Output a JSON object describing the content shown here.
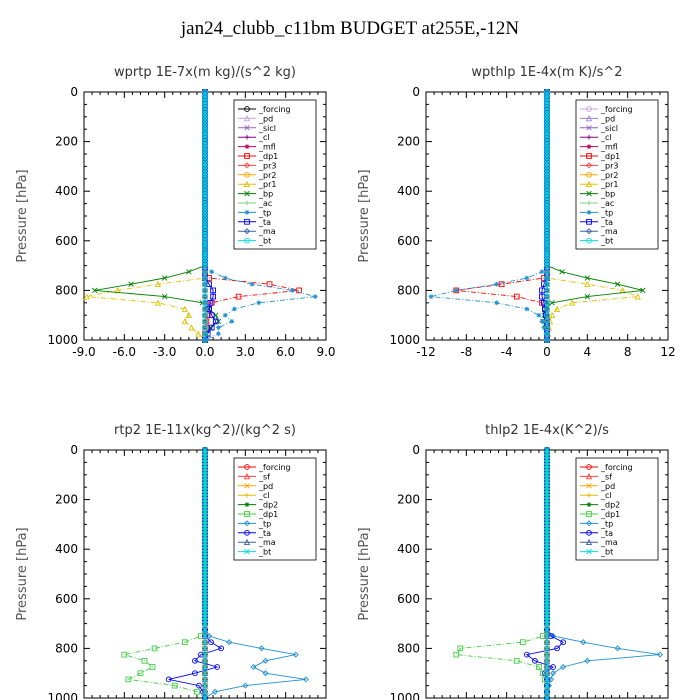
{
  "title": "jan24_clubb_c11bm  BUDGET at255E,-12N",
  "chart_data": [
    {
      "type": "line",
      "title": "wprtp  1E-7x(m kg)/(s^2 kg)",
      "ylabel": "Pressure [hPa]",
      "xlim": [
        -9,
        9
      ],
      "ylim": [
        0,
        1000
      ],
      "xticks": [
        "-9.0",
        "-6.0",
        "-3.0",
        "0.0",
        "3.0",
        "6.0",
        "9.0"
      ],
      "yticks": [
        "0",
        "200",
        "400",
        "600",
        "800",
        "1000"
      ],
      "legend_position": "top-right",
      "y": [
        700,
        725,
        750,
        775,
        800,
        825,
        850,
        875,
        900,
        925,
        950,
        975,
        1000
      ],
      "series": [
        {
          "name": "_forcing",
          "color": "#000000",
          "values": [
            0,
            0,
            0,
            0,
            0,
            0,
            0,
            0,
            0,
            0,
            0,
            0,
            0
          ]
        },
        {
          "name": "_pd",
          "color": "#c8a0e0",
          "values": [
            0,
            0,
            0,
            0,
            0,
            0,
            0,
            0,
            0,
            0,
            0,
            0,
            0
          ]
        },
        {
          "name": "_sicl",
          "color": "#9060c0",
          "values": [
            0,
            0,
            0,
            0,
            0,
            0,
            0,
            0,
            0,
            0,
            0,
            0,
            0
          ]
        },
        {
          "name": "_cl",
          "color": "#800080",
          "values": [
            0,
            0,
            0,
            0,
            0,
            0,
            0,
            0,
            0,
            0,
            0,
            0,
            0
          ]
        },
        {
          "name": "_mfl",
          "color": "#c00060",
          "values": [
            0,
            0,
            0,
            0,
            0,
            0,
            0,
            0,
            0,
            0,
            0,
            0,
            0
          ]
        },
        {
          "name": "_dp1",
          "color": "#ff0000",
          "values": [
            0,
            0,
            0.3,
            4.8,
            7.0,
            2.5,
            0.5,
            0.3,
            0.2,
            0.1,
            0.1,
            0,
            0
          ]
        },
        {
          "name": "_pr3",
          "color": "#ff4040",
          "values": [
            0,
            0,
            0,
            0,
            0,
            0,
            0,
            0,
            0,
            0,
            0,
            0,
            0
          ]
        },
        {
          "name": "_pr2",
          "color": "#ffa500",
          "values": [
            0,
            0,
            0,
            0,
            0,
            0,
            0,
            0,
            0,
            0,
            0,
            0,
            0
          ]
        },
        {
          "name": "_pr1",
          "color": "#e0c000",
          "values": [
            0,
            0,
            0,
            -3.5,
            -6.5,
            -8.8,
            -3.5,
            -1.5,
            -1.2,
            -1.5,
            -1.0,
            -0.5,
            0
          ]
        },
        {
          "name": "_bp",
          "color": "#008000",
          "values": [
            0,
            -1.2,
            -3.0,
            -5.5,
            -8.2,
            -3.0,
            -0.2,
            0.3,
            0.8,
            1.0,
            0.4,
            0.1,
            0
          ]
        },
        {
          "name": "_ac",
          "color": "#80d080",
          "values": [
            0,
            0,
            0,
            0,
            0,
            0,
            0,
            0,
            0,
            0,
            0,
            0,
            0
          ]
        },
        {
          "name": "_tp",
          "color": "#2090d0",
          "values": [
            0,
            0.5,
            1.5,
            3.5,
            6.5,
            8.2,
            4.0,
            2.2,
            1.5,
            2.0,
            1.0,
            1.0,
            0
          ]
        },
        {
          "name": "_ta",
          "color": "#0000ff",
          "values": [
            0,
            0,
            0,
            0.3,
            0.6,
            0.6,
            0.4,
            0.3,
            0.5,
            0.8,
            0.5,
            0.2,
            0
          ]
        },
        {
          "name": "_ma",
          "color": "#4060a0",
          "values": [
            0,
            0,
            0,
            0,
            0,
            0,
            0,
            0,
            0,
            0,
            0,
            0,
            0
          ]
        },
        {
          "name": "_bt",
          "color": "#00e0e0",
          "values": [
            0,
            0,
            0,
            0,
            0,
            0,
            0,
            0,
            0,
            0,
            0,
            0,
            0
          ]
        }
      ]
    },
    {
      "type": "line",
      "title": "wpthlp  1E-4x(m K)/s^2",
      "ylabel": "Pressure [hPa]",
      "xlim": [
        -12,
        12
      ],
      "ylim": [
        0,
        1000
      ],
      "xticks": [
        "-12",
        "-8",
        "-4",
        "0",
        "4",
        "8",
        "12"
      ],
      "yticks": [
        "0",
        "200",
        "400",
        "600",
        "800",
        "1000"
      ],
      "legend_position": "top-right",
      "y": [
        700,
        725,
        750,
        775,
        800,
        825,
        850,
        875,
        900,
        925,
        950,
        975,
        1000
      ],
      "series": [
        {
          "name": "_forcing",
          "color": "#c8a0e0",
          "values": [
            0,
            0,
            0,
            0,
            0,
            0,
            0,
            0,
            0,
            0,
            0,
            0,
            0
          ]
        },
        {
          "name": "_pd",
          "color": "#a080d0",
          "values": [
            0,
            0,
            0,
            0,
            0,
            0,
            0,
            0,
            0,
            0,
            0,
            0,
            0
          ]
        },
        {
          "name": "_sicl",
          "color": "#9060c0",
          "values": [
            0,
            0,
            0,
            0,
            0,
            0,
            0,
            0,
            0,
            0,
            0,
            0,
            0
          ]
        },
        {
          "name": "_cl",
          "color": "#800080",
          "values": [
            0,
            0,
            0,
            0,
            0,
            0,
            0,
            0,
            0,
            0,
            0,
            0,
            0
          ]
        },
        {
          "name": "_mfl",
          "color": "#c00060",
          "values": [
            0,
            0,
            0,
            0,
            0,
            0,
            0,
            0,
            0,
            0,
            0,
            0,
            0
          ]
        },
        {
          "name": "_dp1",
          "color": "#ff0000",
          "values": [
            0,
            0,
            -0.3,
            -4.5,
            -9.0,
            -3.0,
            -0.5,
            -0.2,
            -0.1,
            0,
            0,
            0,
            0
          ]
        },
        {
          "name": "_pr3",
          "color": "#ff4040",
          "values": [
            0,
            0,
            0,
            0,
            0,
            0,
            0,
            0,
            0,
            0,
            0,
            0,
            0
          ]
        },
        {
          "name": "_pr2",
          "color": "#ffa500",
          "values": [
            0,
            0,
            0,
            0,
            0,
            0,
            0,
            0,
            0,
            0,
            0,
            0,
            0
          ]
        },
        {
          "name": "_pr1",
          "color": "#e0c000",
          "values": [
            0,
            0,
            0,
            4.0,
            7.5,
            9.0,
            2.5,
            1.0,
            0.5,
            0.3,
            0.2,
            0.1,
            0
          ]
        },
        {
          "name": "_bp",
          "color": "#008000",
          "values": [
            0,
            1.5,
            4.0,
            7.0,
            9.5,
            4.0,
            0.5,
            -0.2,
            -0.3,
            -0.2,
            -0.1,
            0,
            0
          ]
        },
        {
          "name": "_ac",
          "color": "#80d080",
          "values": [
            0,
            0,
            0,
            0,
            0,
            0,
            0,
            0,
            0,
            0,
            0,
            0,
            0
          ]
        },
        {
          "name": "_tp",
          "color": "#2090d0",
          "values": [
            0,
            -0.5,
            -2.0,
            -5.0,
            -9.0,
            -11.5,
            -5.0,
            -2.0,
            -0.8,
            -0.5,
            -0.3,
            -0.1,
            0
          ]
        },
        {
          "name": "_ta",
          "color": "#0000ff",
          "values": [
            0,
            0,
            0,
            -0.3,
            -0.5,
            -0.5,
            -0.3,
            -0.2,
            -0.1,
            0,
            0,
            0,
            0
          ]
        },
        {
          "name": "_ma",
          "color": "#4060a0",
          "values": [
            0,
            0,
            0,
            0,
            0,
            0,
            0,
            0,
            0,
            0,
            0,
            0,
            0
          ]
        },
        {
          "name": "_bt",
          "color": "#00e0e0",
          "values": [
            0,
            0,
            0,
            0,
            0,
            0,
            0,
            0,
            0,
            0,
            0,
            0,
            0
          ]
        }
      ]
    },
    {
      "type": "line",
      "title": "rtp2  1E-11x(kg^2)/(kg^2 s)",
      "ylabel": "Pressure [hPa]",
      "xlim": [
        -60,
        60
      ],
      "ylim": [
        0,
        1000
      ],
      "xticks": [
        "-60",
        "-40",
        "-20",
        "0",
        "20",
        "40",
        "60"
      ],
      "yticks": [
        "0",
        "200",
        "400",
        "600",
        "800",
        "1000"
      ],
      "legend_position": "top-right",
      "y": [
        700,
        725,
        750,
        775,
        800,
        825,
        850,
        875,
        900,
        925,
        950,
        975,
        1000
      ],
      "series": [
        {
          "name": "_forcing",
          "color": "#ff0000",
          "values": [
            0,
            0,
            0,
            0,
            0,
            0,
            0,
            0,
            0,
            0,
            0,
            0,
            0
          ]
        },
        {
          "name": "_sf",
          "color": "#ff4040",
          "values": [
            0,
            0,
            0,
            0,
            0,
            0,
            0,
            0,
            0,
            0,
            0,
            0,
            0
          ]
        },
        {
          "name": "_pd",
          "color": "#ffa500",
          "values": [
            0,
            0,
            0,
            0,
            0,
            0,
            0,
            0,
            0,
            0,
            0,
            0,
            0
          ]
        },
        {
          "name": "_cl",
          "color": "#e0c000",
          "values": [
            0,
            0,
            0,
            0,
            0,
            0,
            0,
            0,
            0,
            0,
            0,
            0,
            0
          ]
        },
        {
          "name": "_dp2",
          "color": "#008000",
          "values": [
            0,
            0,
            0,
            0,
            0,
            0,
            0,
            0,
            0,
            0,
            0,
            0,
            0
          ]
        },
        {
          "name": "_dp1",
          "color": "#40d040",
          "values": [
            0,
            0,
            -2.0,
            -10.0,
            -25.0,
            -40.0,
            -30.0,
            -26.0,
            -32.0,
            -38.0,
            -15.0,
            -4.0,
            0
          ]
        },
        {
          "name": "_tp",
          "color": "#2090d0",
          "values": [
            0,
            0,
            2.0,
            12.0,
            28.0,
            45.0,
            30.0,
            24.0,
            30.0,
            50.0,
            20.0,
            5.0,
            0
          ]
        },
        {
          "name": "_ta",
          "color": "#0000ff",
          "values": [
            0,
            0,
            0,
            3.0,
            8.0,
            -2.0,
            -5.0,
            6.0,
            -5.0,
            -18.0,
            -3.0,
            -1.0,
            0
          ]
        },
        {
          "name": "_ma",
          "color": "#4060a0",
          "values": [
            0,
            0,
            0,
            0,
            0,
            0,
            0,
            0,
            0,
            0,
            0,
            0,
            0
          ]
        },
        {
          "name": "_bt",
          "color": "#00e0e0",
          "values": [
            0,
            0,
            0,
            0,
            0,
            0,
            0,
            0,
            0,
            0,
            0,
            0,
            0
          ]
        }
      ]
    },
    {
      "type": "line",
      "title": "thlp2  1E-4x(K^2)/s",
      "ylabel": "Pressure [hPa]",
      "xlim": [
        -6,
        6
      ],
      "ylim": [
        0,
        1000
      ],
      "xticks": [
        "-6.0",
        "-4.0",
        "-2.0",
        "0.0",
        "2.0",
        "4.0",
        "6.0"
      ],
      "yticks": [
        "0",
        "200",
        "400",
        "600",
        "800",
        "1000"
      ],
      "legend_position": "top-right",
      "y": [
        700,
        725,
        750,
        775,
        800,
        825,
        850,
        875,
        900,
        925,
        950,
        975,
        1000
      ],
      "series": [
        {
          "name": "_forcing",
          "color": "#ff0000",
          "values": [
            0,
            0,
            0,
            0,
            0,
            0,
            0,
            0,
            0,
            0,
            0,
            0,
            0
          ]
        },
        {
          "name": "_sf",
          "color": "#ff4040",
          "values": [
            0,
            0,
            0,
            0,
            0,
            0,
            0,
            0,
            0,
            0,
            0,
            0,
            0
          ]
        },
        {
          "name": "_pd",
          "color": "#ffa500",
          "values": [
            0,
            0,
            0,
            0,
            0,
            0,
            0,
            0,
            0,
            0,
            0,
            0,
            0
          ]
        },
        {
          "name": "_cl",
          "color": "#e0c000",
          "values": [
            0,
            0,
            0,
            0,
            0,
            0,
            0,
            0,
            0,
            0,
            0,
            0,
            0
          ]
        },
        {
          "name": "_dp2",
          "color": "#008000",
          "values": [
            0,
            0,
            0,
            0,
            0,
            0,
            0,
            0,
            0,
            0,
            0,
            0,
            0
          ]
        },
        {
          "name": "_dp1",
          "color": "#40d040",
          "values": [
            0,
            0,
            -0.2,
            -1.2,
            -4.3,
            -4.5,
            -1.5,
            -0.4,
            -0.2,
            -0.1,
            0,
            0,
            0
          ]
        },
        {
          "name": "_tp",
          "color": "#2090d0",
          "values": [
            0,
            0,
            0.3,
            1.8,
            3.5,
            5.6,
            2.0,
            0.8,
            0.3,
            0.2,
            0.1,
            0,
            0
          ]
        },
        {
          "name": "_ta",
          "color": "#0000ff",
          "values": [
            0,
            0,
            0.2,
            0.8,
            0.5,
            -1.0,
            -0.6,
            0.3,
            -0.1,
            0,
            0,
            0,
            0
          ]
        },
        {
          "name": "_ma",
          "color": "#4060a0",
          "values": [
            0,
            0,
            0,
            0,
            0,
            0,
            0,
            0,
            0,
            0,
            0,
            0,
            0
          ]
        },
        {
          "name": "_bt",
          "color": "#00e0e0",
          "values": [
            0,
            0,
            0,
            0,
            0,
            0,
            0,
            0,
            0,
            0,
            0,
            0,
            0
          ]
        }
      ]
    }
  ]
}
